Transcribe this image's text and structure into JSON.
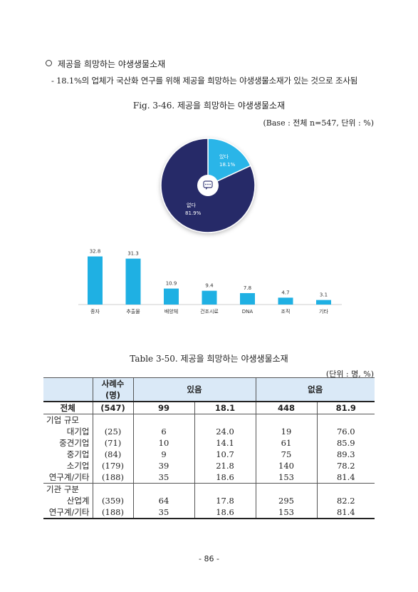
{
  "bullet_heading": "제공을 희망하는 야생생물소재",
  "summary_line": "- 18.1%의 업체가 국산화 연구를 위해 제공을 희망하는 야생생물소재가 있는 것으로 조사됨",
  "figure": {
    "title": "Fig. 3-46. 제공을 희망하는 야생생물소재",
    "base_note": "(Base : 전체 n=547, 단위 : %)"
  },
  "pie_chart": {
    "type": "pie",
    "slices": [
      {
        "label": "있다",
        "value": 18.1,
        "value_text": "18.1%",
        "color": "#29b5e8"
      },
      {
        "label": "없다",
        "value": 81.9,
        "value_text": "81.9%",
        "color": "#262a67"
      }
    ],
    "center_icon": "chat-bubble-icon"
  },
  "chart_data": {
    "type": "bar",
    "categories": [
      "종자",
      "추출물",
      "배양체",
      "건조시료",
      "DNA",
      "조직",
      "기타"
    ],
    "values": [
      32.8,
      31.3,
      10.9,
      9.4,
      7.8,
      4.7,
      3.1
    ],
    "value_labels": [
      "32.8",
      "31.3",
      "10.9",
      "9.4",
      "7.8",
      "4.7",
      "3.1"
    ],
    "color": "#1fb0e3",
    "ylim": [
      0,
      35
    ],
    "grid": false
  },
  "table": {
    "title": "Table 3-50. 제공을 희망하는 야생생물소재",
    "unit_note": "(단위 : 명, %)",
    "header": {
      "cases": "사례수\n(명)",
      "yes": "있음",
      "no": "없음"
    },
    "total": {
      "label": "전체",
      "n": "(547)",
      "yes_n": "99",
      "yes_p": "18.1",
      "no_n": "448",
      "no_p": "81.9"
    },
    "sections": [
      {
        "title": "기업 규모",
        "rows": [
          {
            "label": "대기업",
            "n": "(25)",
            "yes_n": "6",
            "yes_p": "24.0",
            "no_n": "19",
            "no_p": "76.0"
          },
          {
            "label": "중견기업",
            "n": "(71)",
            "yes_n": "10",
            "yes_p": "14.1",
            "no_n": "61",
            "no_p": "85.9"
          },
          {
            "label": "중기업",
            "n": "(84)",
            "yes_n": "9",
            "yes_p": "10.7",
            "no_n": "75",
            "no_p": "89.3"
          },
          {
            "label": "소기업",
            "n": "(179)",
            "yes_n": "39",
            "yes_p": "21.8",
            "no_n": "140",
            "no_p": "78.2"
          },
          {
            "label": "연구계/기타",
            "n": "(188)",
            "yes_n": "35",
            "yes_p": "18.6",
            "no_n": "153",
            "no_p": "81.4"
          }
        ]
      },
      {
        "title": "기관 구분",
        "rows": [
          {
            "label": "산업계",
            "n": "(359)",
            "yes_n": "64",
            "yes_p": "17.8",
            "no_n": "295",
            "no_p": "82.2"
          },
          {
            "label": "연구계/기타",
            "n": "(188)",
            "yes_n": "35",
            "yes_p": "18.6",
            "no_n": "153",
            "no_p": "81.4"
          }
        ]
      }
    ]
  },
  "page_number": "- 86 -"
}
